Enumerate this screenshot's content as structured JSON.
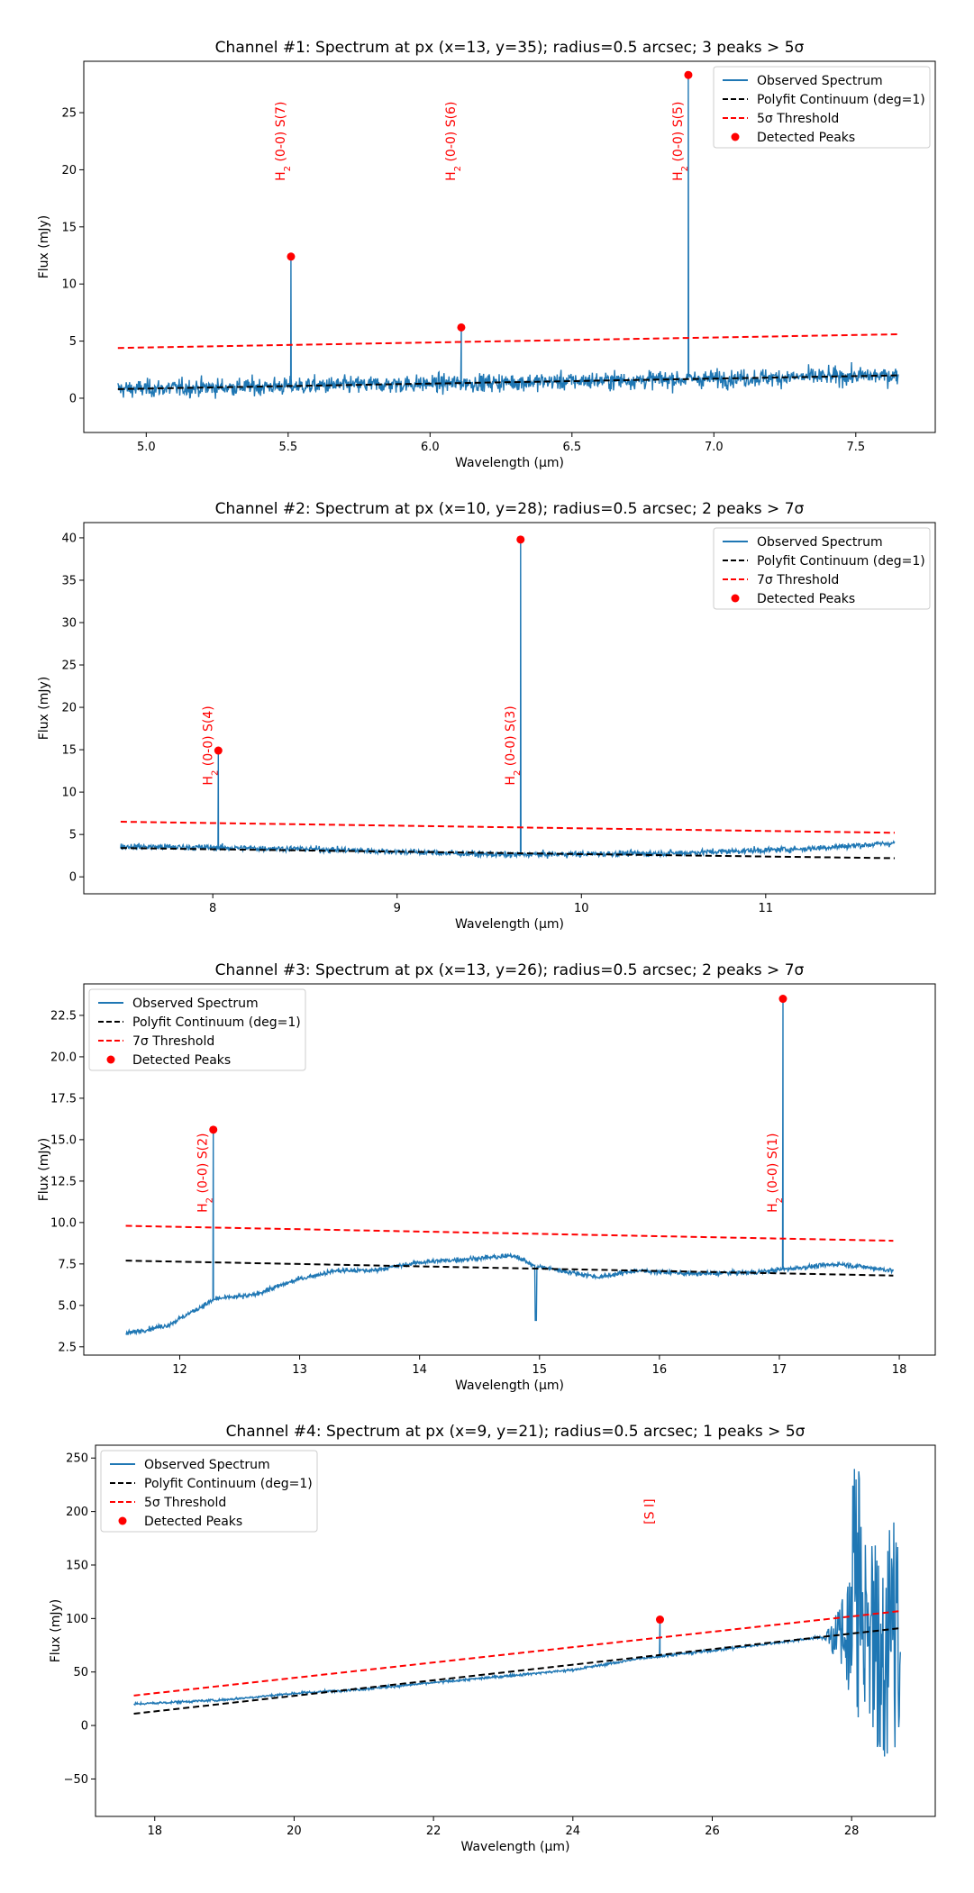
{
  "chart_data": [
    {
      "type": "line",
      "title": "Channel #1: Spectrum at px (x=13, y=35); radius=0.5 arcsec; 3 peaks > 5σ",
      "xlabel": "Wavelength (μm)",
      "ylabel": "Flux (mJy)",
      "xlim": [
        4.78,
        7.78
      ],
      "ylim": [
        -3,
        29.5
      ],
      "xticks": [
        5.0,
        5.5,
        6.0,
        6.5,
        7.0,
        7.5
      ],
      "xtick_labels": [
        "5.0",
        "5.5",
        "6.0",
        "6.5",
        "7.0",
        "7.5"
      ],
      "yticks": [
        0,
        5,
        10,
        15,
        20,
        25
      ],
      "ytick_labels": [
        "0",
        "5",
        "10",
        "15",
        "20",
        "25"
      ],
      "legend_position": "top-right",
      "legend": [
        "Observed Spectrum",
        "Polyfit Continuum (deg=1)",
        "5σ Threshold",
        "Detected Peaks"
      ],
      "series": [
        {
          "name": "Observed Spectrum",
          "color": "#1f77b4",
          "x_range": [
            4.9,
            7.65
          ],
          "noise": 1.0,
          "baseline": [
            [
              4.9,
              0.8
            ],
            [
              7.65,
              2.0
            ]
          ]
        },
        {
          "name": "Polyfit Continuum (deg=1)",
          "color": "#000000",
          "style": "dashed",
          "x": [
            4.9,
            7.65
          ],
          "y": [
            0.8,
            2.0
          ]
        },
        {
          "name": "5σ Threshold",
          "color": "#ff0000",
          "style": "dashed",
          "x": [
            4.9,
            7.65
          ],
          "y": [
            4.4,
            5.6
          ]
        }
      ],
      "peaks": [
        {
          "x": 5.51,
          "y": 12.4,
          "label": "H",
          "sub": "2",
          "line": " (0-0) S(7)",
          "label_y": 22.5
        },
        {
          "x": 6.11,
          "y": 6.2,
          "label": "H",
          "sub": "2",
          "line": " (0-0) S(6)",
          "label_y": 22.5
        },
        {
          "x": 6.91,
          "y": 28.3,
          "label": "H",
          "sub": "2",
          "line": " (0-0) S(5)",
          "label_y": 22.5
        }
      ]
    },
    {
      "type": "line",
      "title": "Channel #2: Spectrum at px (x=10, y=28); radius=0.5 arcsec; 2 peaks > 7σ",
      "xlabel": "Wavelength (μm)",
      "ylabel": "Flux (mJy)",
      "xlim": [
        7.3,
        11.92
      ],
      "ylim": [
        -2.0,
        41.8
      ],
      "xticks": [
        8,
        9,
        10,
        11
      ],
      "xtick_labels": [
        "8",
        "9",
        "10",
        "11"
      ],
      "yticks": [
        0,
        5,
        10,
        15,
        20,
        25,
        30,
        35,
        40
      ],
      "ytick_labels": [
        "0",
        "5",
        "10",
        "15",
        "20",
        "25",
        "30",
        "35",
        "40"
      ],
      "legend_position": "top-right",
      "legend": [
        "Observed Spectrum",
        "Polyfit Continuum (deg=1)",
        "7σ Threshold",
        "Detected Peaks"
      ],
      "series": [
        {
          "name": "Observed Spectrum",
          "color": "#1f77b4",
          "x_range": [
            7.5,
            11.7
          ],
          "noise": 0.45,
          "baseline": [
            [
              7.5,
              3.6
            ],
            [
              8.5,
              3.3
            ],
            [
              9.6,
              2.6
            ],
            [
              10.5,
              2.8
            ],
            [
              11.2,
              3.3
            ],
            [
              11.7,
              4.0
            ]
          ]
        },
        {
          "name": "Polyfit Continuum (deg=1)",
          "color": "#000000",
          "style": "dashed",
          "x": [
            7.5,
            11.7
          ],
          "y": [
            3.4,
            2.2
          ]
        },
        {
          "name": "7σ Threshold",
          "color": "#ff0000",
          "style": "dashed",
          "x": [
            7.5,
            11.7
          ],
          "y": [
            6.5,
            5.2
          ]
        }
      ],
      "peaks": [
        {
          "x": 8.03,
          "y": 14.9,
          "label": "H",
          "sub": "2",
          "line": " (0-0) S(4)",
          "label_y": 15.5
        },
        {
          "x": 9.67,
          "y": 39.8,
          "label": "H",
          "sub": "2",
          "line": " (0-0) S(3)",
          "label_y": 15.5
        }
      ]
    },
    {
      "type": "line",
      "title": "Channel #3: Spectrum at px (x=13, y=26); radius=0.5 arcsec; 2 peaks > 7σ",
      "xlabel": "Wavelength (μm)",
      "ylabel": "Flux (mJy)",
      "xlim": [
        11.2,
        18.3
      ],
      "ylim": [
        2.0,
        24.4
      ],
      "xticks": [
        12,
        13,
        14,
        15,
        16,
        17,
        18
      ],
      "xtick_labels": [
        "12",
        "13",
        "14",
        "15",
        "16",
        "17",
        "18"
      ],
      "yticks": [
        2.5,
        5.0,
        7.5,
        10.0,
        12.5,
        15.0,
        17.5,
        20.0,
        22.5
      ],
      "ytick_labels": [
        "2.5",
        "5.0",
        "7.5",
        "10.0",
        "12.5",
        "15.0",
        "17.5",
        "20.0",
        "22.5"
      ],
      "legend_position": "top-left",
      "legend": [
        "Observed Spectrum",
        "Polyfit Continuum (deg=1)",
        "7σ Threshold",
        "Detected Peaks"
      ],
      "series": [
        {
          "name": "Observed Spectrum",
          "color": "#1f77b4",
          "x_range": [
            11.55,
            17.95
          ],
          "noise": 0.18,
          "baseline": [
            [
              11.55,
              3.3
            ],
            [
              11.9,
              3.8
            ],
            [
              12.3,
              5.4
            ],
            [
              12.6,
              5.6
            ],
            [
              13.0,
              6.6
            ],
            [
              13.3,
              7.1
            ],
            [
              13.6,
              7.1
            ],
            [
              14.0,
              7.6
            ],
            [
              14.4,
              7.8
            ],
            [
              14.8,
              8.0
            ],
            [
              14.95,
              7.4
            ],
            [
              15.1,
              7.2
            ],
            [
              15.5,
              6.7
            ],
            [
              15.8,
              7.1
            ],
            [
              16.3,
              6.9
            ],
            [
              16.8,
              7.0
            ],
            [
              17.2,
              7.3
            ],
            [
              17.5,
              7.5
            ],
            [
              17.95,
              7.1
            ]
          ]
        },
        {
          "name": "Polyfit Continuum (deg=1)",
          "color": "#000000",
          "style": "dashed",
          "x": [
            11.55,
            17.95
          ],
          "y": [
            7.7,
            6.8
          ]
        },
        {
          "name": "7σ Threshold",
          "color": "#ff0000",
          "style": "dashed",
          "x": [
            11.55,
            17.95
          ],
          "y": [
            9.8,
            8.9
          ]
        }
      ],
      "dips": [
        {
          "x": 14.97,
          "y": 4.1
        }
      ],
      "peaks": [
        {
          "x": 12.28,
          "y": 15.6,
          "label": "H",
          "sub": "2",
          "line": " (0-0) S(2)",
          "label_y": 13.0
        },
        {
          "x": 17.03,
          "y": 23.5,
          "label": "H",
          "sub": "2",
          "line": " (0-0) S(1)",
          "label_y": 13.0
        }
      ]
    },
    {
      "type": "line",
      "title": "Channel #4: Spectrum at px (x=9, y=21); radius=0.5 arcsec; 1 peaks > 5σ",
      "xlabel": "Wavelength (μm)",
      "ylabel": "Flux (mJy)",
      "xlim": [
        17.15,
        29.2
      ],
      "ylim": [
        -85,
        262
      ],
      "xticks": [
        18,
        20,
        22,
        24,
        26,
        28
      ],
      "xtick_labels": [
        "18",
        "20",
        "22",
        "24",
        "26",
        "28"
      ],
      "yticks": [
        -50,
        0,
        50,
        100,
        150,
        200,
        250
      ],
      "ytick_labels": [
        "−50",
        "0",
        "50",
        "100",
        "150",
        "200",
        "250"
      ],
      "legend_position": "top-left",
      "legend": [
        "Observed Spectrum",
        "Polyfit Continuum (deg=1)",
        "5σ Threshold",
        "Detected Peaks"
      ],
      "series": [
        {
          "name": "Observed Spectrum",
          "color": "#1f77b4",
          "x_range": [
            17.7,
            28.7
          ],
          "noise": 1.5,
          "baseline": [
            [
              17.7,
              20
            ],
            [
              19.0,
              24
            ],
            [
              20.0,
              30
            ],
            [
              21.0,
              34
            ],
            [
              22.0,
              40
            ],
            [
              23.0,
              46
            ],
            [
              24.0,
              52
            ],
            [
              25.0,
              63
            ],
            [
              26.0,
              70
            ],
            [
              27.0,
              78
            ],
            [
              27.5,
              82
            ],
            [
              28.7,
              80
            ]
          ],
          "noisy_region": {
            "start": 27.6,
            "amplitude": 160
          }
        },
        {
          "name": "Polyfit Continuum (deg=1)",
          "color": "#000000",
          "style": "dashed",
          "x": [
            17.7,
            28.7
          ],
          "y": [
            11,
            91
          ]
        },
        {
          "name": "5σ Threshold",
          "color": "#ff0000",
          "style": "dashed",
          "x": [
            17.7,
            28.7
          ],
          "y": [
            28,
            107
          ]
        }
      ],
      "peaks": [
        {
          "x": 25.25,
          "y": 99,
          "label": "[S I]",
          "sub": "",
          "line": "",
          "label_y": 200
        }
      ]
    }
  ]
}
